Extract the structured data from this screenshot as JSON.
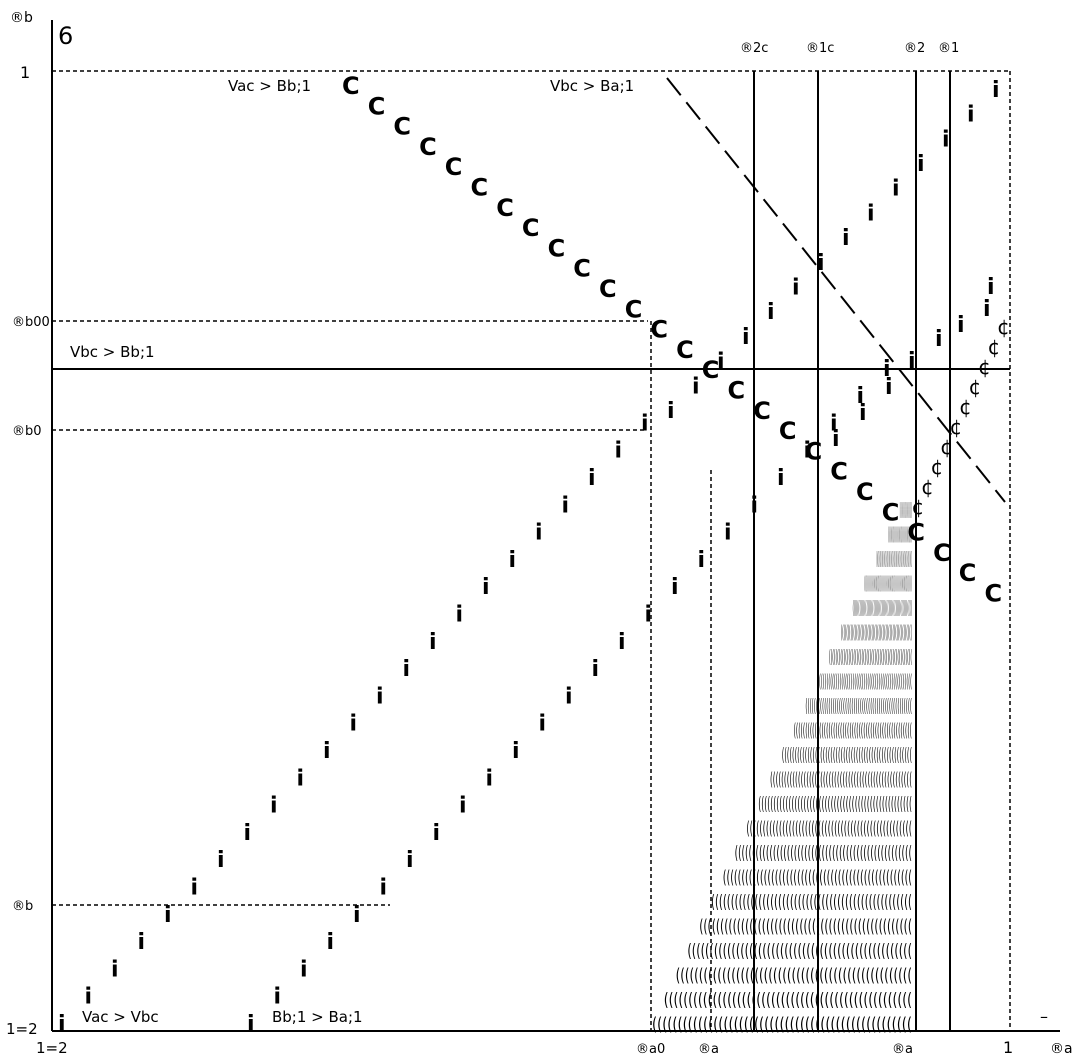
{
  "labels": {
    "y_axis": "®b",
    "six": "6",
    "one_top": "1",
    "b_dd": "®b00",
    "b_d": "®b0",
    "b_low": "®b",
    "half_y": "1=2",
    "half_x": "1=2",
    "a_0": "®a0",
    "a_low": "®a",
    "a_hat": "®a",
    "one_right": "1",
    "x_axis": "®a",
    "bar_mark": "–",
    "alpha_2c": "®2c",
    "alpha_1c": "®1c",
    "alpha_2": "®2",
    "alpha_1": "®1",
    "cond_va_bb": "Vac > Bb;1",
    "cond_vb_ba": "Vbc > Ba;1",
    "cond_vb_bb": "Vbc > Bb;1",
    "cond_va_vb": "Vac > Vbc",
    "cond_bb_ba": "Bb;1 > Ba;1"
  },
  "glyphs": {
    "c_mark": "C",
    "i_mark": "i",
    "cent_mark": "¢",
    "hatch_row": "((((((((((((((((((((((((((((((((((((((((((((((((((("
  },
  "colors": {
    "line": "#000000",
    "background": "#ffffff"
  }
}
